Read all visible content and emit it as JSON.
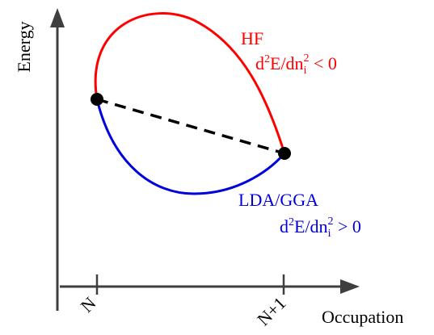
{
  "axes": {
    "y_label": "Energy",
    "x_label": "Occupation",
    "x_ticks": [
      "N",
      "N+1"
    ],
    "axis_color": "#3f3f3f"
  },
  "curves": {
    "hf": {
      "name": "HF",
      "condition_main": "d",
      "condition_sup1": "2",
      "condition_mid": "E/dn",
      "condition_sub": "i",
      "condition_sup2": "2",
      "condition_rel": " < 0",
      "color": "#ff0000"
    },
    "lda_gga": {
      "name": "LDA/GGA",
      "condition_main": "d",
      "condition_sup1": "2",
      "condition_mid": "E/dn",
      "condition_sub": "i",
      "condition_sup2": "2",
      "condition_rel": " > 0",
      "color": "#0000dd"
    },
    "linear": {
      "style": "dashed",
      "color": "#000000"
    }
  },
  "points": {
    "color": "#000000"
  }
}
